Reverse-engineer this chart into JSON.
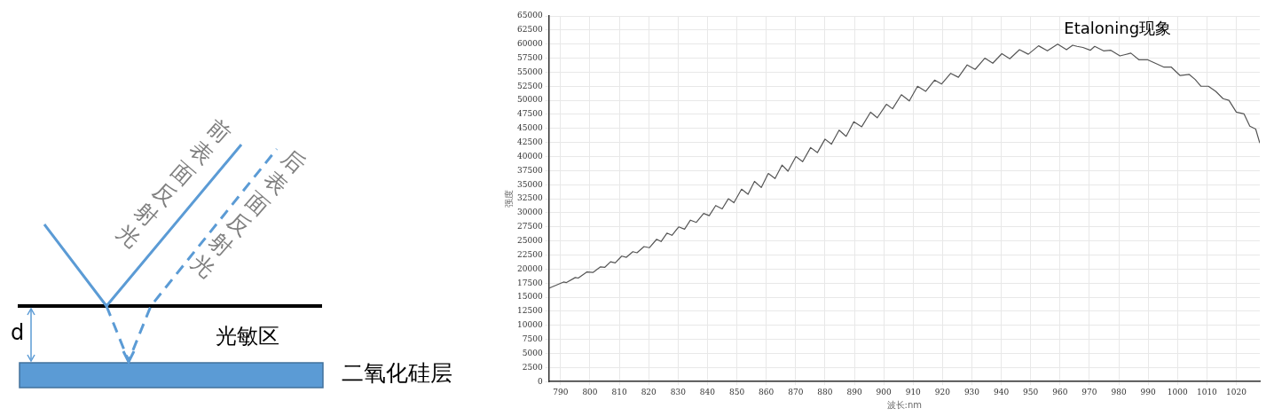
{
  "chart_data": [
    {
      "type": "other",
      "annotations": [
        "前表面反射光",
        "后表面反射光",
        "d",
        "光敏区",
        "二氧化硅层"
      ]
    },
    {
      "type": "line",
      "xlabel": "波长:nm",
      "ylabel": "强度",
      "annotations": [
        "Etaloning现象"
      ],
      "grid": true,
      "legend": false,
      "marker": "none",
      "line_style": "solid",
      "xlim": [
        786,
        1028
      ],
      "xticks": [
        790,
        800,
        810,
        820,
        830,
        840,
        850,
        860,
        870,
        880,
        890,
        900,
        910,
        920,
        930,
        940,
        950,
        960,
        970,
        980,
        990,
        1000,
        1010,
        1020
      ],
      "ylim": [
        0,
        65000
      ],
      "yticks": [
        0,
        2500,
        5000,
        7500,
        10000,
        12500,
        15000,
        17500,
        20000,
        22500,
        25000,
        27500,
        30000,
        32500,
        35000,
        37500,
        40000,
        42500,
        45000,
        47500,
        50000,
        52500,
        55000,
        57500,
        60000,
        62500,
        65000
      ],
      "series": [
        {
          "color": "#555555",
          "x": [
            786,
            791,
            792,
            795,
            796,
            799,
            801,
            803.6,
            805,
            807,
            808.6,
            810.8,
            812.4,
            814.6,
            816,
            818.4,
            820.2,
            822.7,
            824.2,
            826.2,
            827.9,
            830.2,
            832.2,
            834.2,
            836.2,
            838.7,
            840.6,
            842.8,
            845,
            847.1,
            849,
            851.6,
            853.8,
            856,
            858.3,
            860.7,
            863,
            865.4,
            867.4,
            870.1,
            872.4,
            875.1,
            877.4,
            880,
            882.2,
            884.8,
            887.2,
            889.8,
            892.5,
            895.5,
            897.8,
            900.9,
            903,
            906,
            908.7,
            911.5,
            914.3,
            917.3,
            919.7,
            922.8,
            925.4,
            928.4,
            931.1,
            934.4,
            937.1,
            940.2,
            942.9,
            946.2,
            949.2,
            952.7,
            955.7,
            959.2,
            962.2,
            964.3,
            965.8,
            967.8,
            970.3,
            971.8,
            974.8,
            977.3,
            980.4,
            981.9,
            984.1,
            986.9,
            989.9,
            992.4,
            995.4,
            997.9,
            1000.9,
            1004,
            1006,
            1008,
            1010.5,
            1013,
            1015.5,
            1017.5,
            1020,
            1022.6,
            1024.6,
            1026.6,
            1028
          ],
          "values": [
            16600,
            17700,
            17600,
            18500,
            18400,
            19500,
            19400,
            20400,
            20300,
            21300,
            21100,
            22300,
            22100,
            23100,
            22900,
            24000,
            23800,
            25300,
            24900,
            26400,
            26000,
            27500,
            27100,
            28700,
            28300,
            29900,
            29500,
            31300,
            30700,
            32500,
            31800,
            34200,
            33300,
            35600,
            34500,
            37000,
            36100,
            38500,
            37400,
            40000,
            39100,
            41600,
            40700,
            43100,
            42200,
            44700,
            43600,
            46200,
            45300,
            47900,
            46900,
            49300,
            48500,
            51000,
            49900,
            52500,
            51600,
            53600,
            52900,
            54800,
            54100,
            56300,
            55500,
            57500,
            56600,
            58300,
            57400,
            59000,
            58200,
            59700,
            58800,
            60000,
            59000,
            59800,
            59600,
            59400,
            58900,
            59600,
            58800,
            58900,
            57900,
            58100,
            58400,
            57200,
            57200,
            56600,
            55900,
            55900,
            54400,
            54600,
            53700,
            52500,
            52500,
            51600,
            50300,
            50000,
            47900,
            47600,
            45400,
            44900,
            42400
          ]
        }
      ]
    }
  ]
}
